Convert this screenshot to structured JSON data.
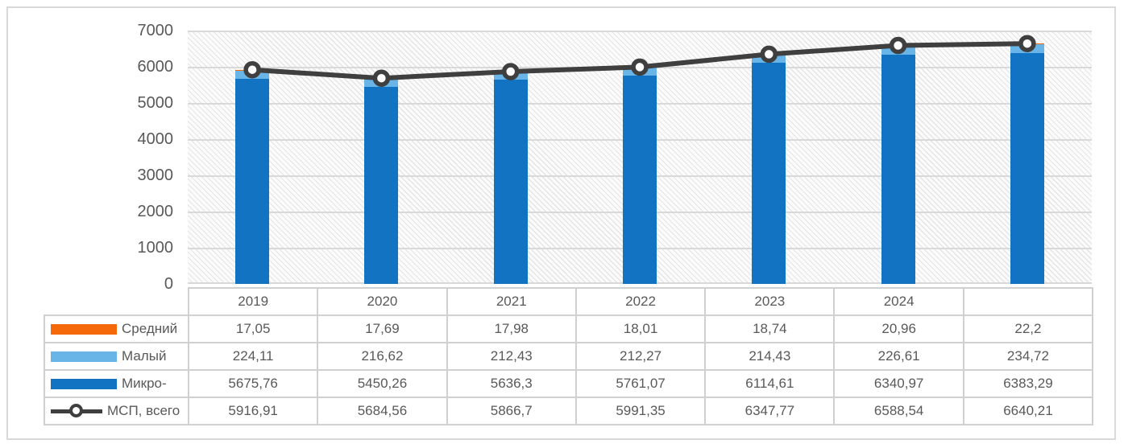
{
  "chart_data": {
    "type": "bar",
    "subtype": "stacked-bars-with-line-overlay",
    "categories": [
      "2019",
      "2020",
      "2021",
      "2022",
      "2023",
      "2024",
      ""
    ],
    "series": [
      {
        "name": "Микро-",
        "slug": "micro",
        "type": "bar",
        "color": "#1273c2",
        "values": [
          5675.76,
          5450.26,
          5636.3,
          5761.07,
          6114.61,
          6340.97,
          6383.29
        ]
      },
      {
        "name": "Малый",
        "slug": "small",
        "type": "bar",
        "color": "#69b5e7",
        "values": [
          224.11,
          216.62,
          212.43,
          212.27,
          214.43,
          226.61,
          234.72
        ]
      },
      {
        "name": "Средний",
        "slug": "medium",
        "type": "bar",
        "color": "#f6690a",
        "values": [
          17.05,
          17.69,
          17.98,
          18.01,
          18.74,
          20.96,
          22.2
        ]
      },
      {
        "name": "МСП, всего",
        "slug": "total",
        "type": "line",
        "color": "#3f3f3f",
        "marker": "open-circle",
        "values": [
          5916.91,
          5684.56,
          5866.7,
          5991.35,
          6347.77,
          6588.54,
          6640.21
        ]
      }
    ],
    "title": "",
    "xlabel": "",
    "ylabel": "",
    "ylim": [
      0,
      7000
    ],
    "y_tick_step": 1000,
    "y_ticks": [
      "7000",
      "6000",
      "5000",
      "4000",
      "3000",
      "2000",
      "1000",
      "0"
    ],
    "grid": true,
    "plot_background": "diagonal-hatch",
    "legend_position": "data-table-left-column"
  },
  "table": {
    "header_years": [
      "2019",
      "2020",
      "2021",
      "2022",
      "2023",
      "2024",
      ""
    ],
    "rows": [
      {
        "label": "Средний",
        "values": [
          "17,05",
          "17,69",
          "17,98",
          "18,01",
          "18,74",
          "20,96",
          "22,2"
        ]
      },
      {
        "label": "Малый",
        "values": [
          "224,11",
          "216,62",
          "212,43",
          "212,27",
          "214,43",
          "226,61",
          "234,72"
        ]
      },
      {
        "label": "Микро-",
        "values": [
          "5675,76",
          "5450,26",
          "5636,3",
          "5761,07",
          "6114,61",
          "6340,97",
          "6383,29"
        ]
      },
      {
        "label": "МСП, всего",
        "values": [
          "5916,91",
          "5684,56",
          "5866,7",
          "5991,35",
          "6347,77",
          "6588,54",
          "6640,21"
        ]
      }
    ]
  },
  "colors": {
    "micro_bar": "#1273c2",
    "small_bar": "#69b5e7",
    "medium_bar": "#f6690a",
    "total_line": "#3f3f3f",
    "gridline": "#d9d9d9",
    "table_border": "#d0d0d0",
    "text": "#595959"
  }
}
